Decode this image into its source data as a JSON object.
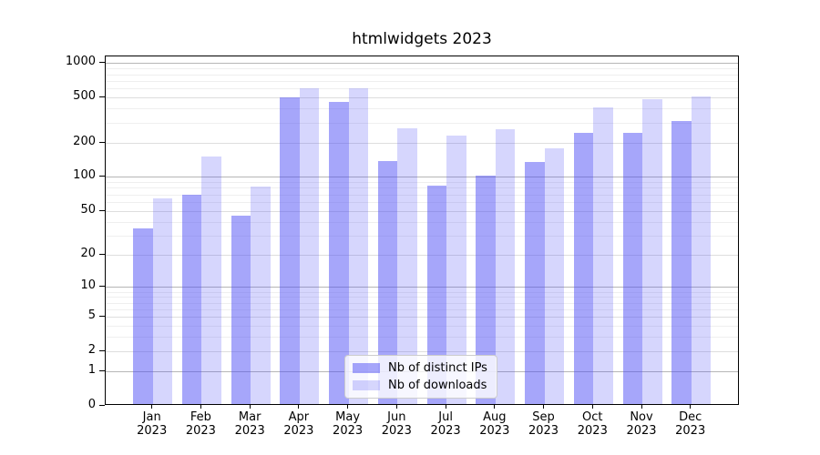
{
  "chart_data": {
    "type": "bar",
    "title": "htmlwidgets 2023",
    "x_axis": {
      "months": [
        "Jan",
        "Feb",
        "Mar",
        "Apr",
        "May",
        "Jun",
        "Jul",
        "Aug",
        "Sep",
        "Oct",
        "Nov",
        "Dec"
      ],
      "year": "2023"
    },
    "y_axis": {
      "scale": "log1p",
      "tick_labels": [
        0,
        1,
        2,
        5,
        10,
        20,
        50,
        100,
        200,
        500,
        1000
      ],
      "decade_gridlines": [
        1,
        10,
        100,
        1000
      ],
      "minor_gridlines": [
        3,
        4,
        6,
        7,
        8,
        9,
        30,
        40,
        60,
        70,
        80,
        90,
        300,
        400,
        600,
        700,
        800,
        900
      ],
      "ylim": [
        0,
        1300
      ],
      "grid": true
    },
    "series": [
      {
        "name": "Nb of distinct IPs",
        "color": "rgba(70,70,245,0.48)",
        "values": [
          35,
          70,
          45,
          500,
          460,
          138,
          83,
          103,
          135,
          245,
          245,
          310
        ]
      },
      {
        "name": "Nb of downloads",
        "color": "rgba(70,70,245,0.22)",
        "values": [
          65,
          150,
          82,
          600,
          600,
          270,
          230,
          263,
          180,
          410,
          485,
          510
        ]
      }
    ],
    "legend": {
      "position": "lower-center-inside"
    },
    "colors": {
      "background": "#ffffff",
      "spine": "#000000",
      "grid_decade": "#b6b6b6",
      "grid_major": "#dedede",
      "grid_minor": "#efefef",
      "text": "#000000",
      "legend_border": "#cccccc"
    }
  }
}
